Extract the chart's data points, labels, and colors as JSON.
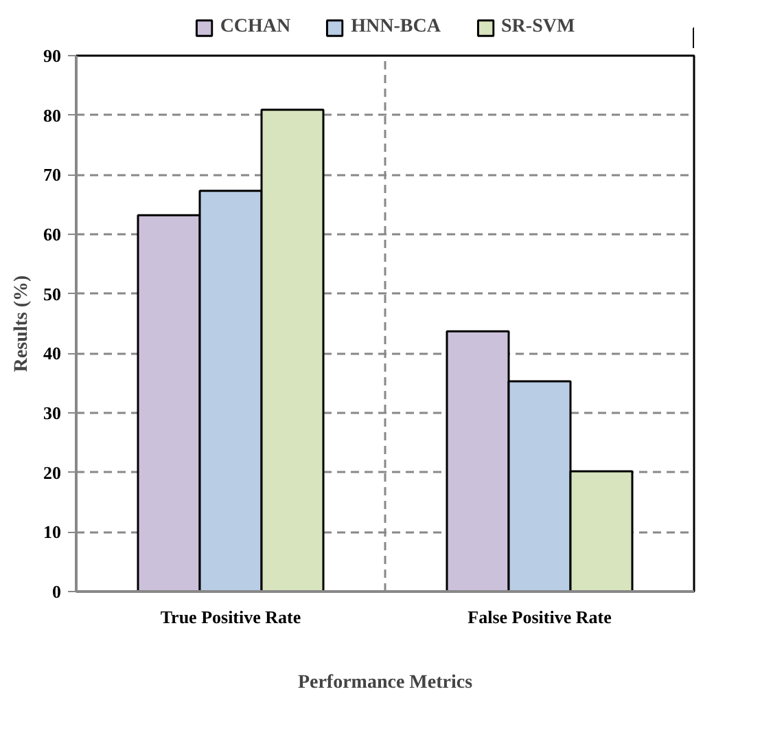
{
  "chart_data": {
    "type": "bar",
    "categories": [
      "True Positive Rate",
      "False Positive Rate"
    ],
    "series": [
      {
        "name": "CCHAN",
        "color": "#ccc1da",
        "values": [
          63.2,
          43.7
        ]
      },
      {
        "name": "HNN-BCA",
        "color": "#b9cde5",
        "values": [
          67.3,
          35.3
        ]
      },
      {
        "name": "SR-SVM",
        "color": "#d7e4bd",
        "values": [
          80.9,
          20.2
        ]
      }
    ],
    "xlabel": "Performance Metrics",
    "ylabel": "Results (%)",
    "ylim": [
      0,
      90
    ],
    "yticks": [
      0,
      10,
      20,
      30,
      40,
      50,
      60,
      70,
      80,
      90
    ],
    "grid": true,
    "legend": "top"
  }
}
